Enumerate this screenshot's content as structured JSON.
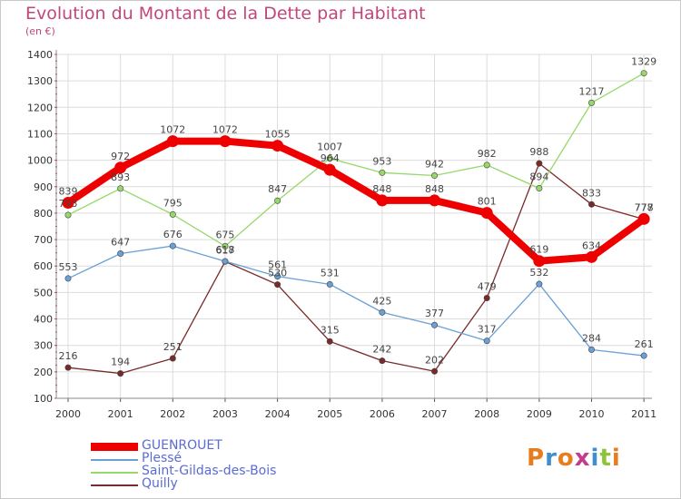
{
  "title": "Evolution du Montant de la Dette par Habitant",
  "unit": "(en €)",
  "logo": "Proxiti",
  "chart_data": {
    "type": "line",
    "title": "Evolution du Montant de la Dette par Habitant",
    "ylabel": "(en €)",
    "ylim": [
      100,
      1400
    ],
    "yticks": [
      100,
      200,
      300,
      400,
      500,
      600,
      700,
      800,
      900,
      1000,
      1100,
      1200,
      1300,
      1400
    ],
    "x": [
      "2000",
      "2001",
      "2002",
      "2003",
      "2004",
      "2005",
      "2006",
      "2007",
      "2008",
      "2009",
      "2010",
      "2011"
    ],
    "grid": true,
    "legend": "bottom-left",
    "series": [
      {
        "name": "GUENROUET",
        "color": "#ee0000",
        "values": [
          839,
          972,
          1072,
          1072,
          1055,
          964,
          848,
          848,
          801,
          619,
          634,
          778
        ]
      },
      {
        "name": "Plessé",
        "color": "#6aa0d6",
        "values": [
          553,
          647,
          676,
          618,
          561,
          531,
          425,
          377,
          317,
          532,
          284,
          261
        ]
      },
      {
        "name": "Saint-Gildas-des-Bois",
        "color": "#96d86a",
        "values": [
          793,
          893,
          795,
          675,
          847,
          1007,
          953,
          942,
          982,
          894,
          1217,
          1329
        ]
      },
      {
        "name": "Quilly",
        "color": "#7a2a2a",
        "values": [
          216,
          194,
          251,
          617,
          530,
          315,
          242,
          202,
          479,
          988,
          833,
          777
        ]
      }
    ]
  }
}
